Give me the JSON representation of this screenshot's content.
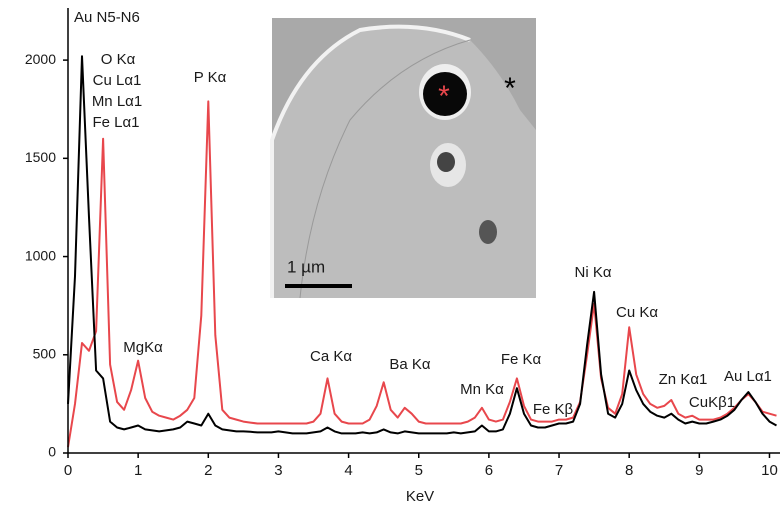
{
  "chart_data": {
    "type": "line",
    "x_label": "KeV",
    "x": [
      0,
      0.1,
      0.2,
      0.3,
      0.4,
      0.5,
      0.6,
      0.7,
      0.8,
      0.9,
      1,
      1.1,
      1.2,
      1.3,
      1.4,
      1.5,
      1.6,
      1.7,
      1.8,
      1.9,
      2,
      2.1,
      2.2,
      2.3,
      2.4,
      2.5,
      2.6,
      2.7,
      2.8,
      2.9,
      3,
      3.1,
      3.2,
      3.3,
      3.4,
      3.5,
      3.6,
      3.7,
      3.8,
      3.9,
      4,
      4.1,
      4.2,
      4.3,
      4.4,
      4.5,
      4.6,
      4.7,
      4.8,
      4.9,
      5,
      5.1,
      5.2,
      5.3,
      5.4,
      5.5,
      5.6,
      5.7,
      5.8,
      5.9,
      6,
      6.1,
      6.2,
      6.3,
      6.4,
      6.5,
      6.6,
      6.7,
      6.8,
      6.9,
      7,
      7.1,
      7.2,
      7.3,
      7.4,
      7.5,
      7.6,
      7.7,
      7.8,
      7.9,
      8,
      8.1,
      8.2,
      8.3,
      8.4,
      8.5,
      8.6,
      8.7,
      8.8,
      8.9,
      9,
      9.1,
      9.2,
      9.3,
      9.4,
      9.5,
      9.6,
      9.7,
      9.8,
      9.9,
      10,
      10.1
    ],
    "series": [
      {
        "color": "#e8474c",
        "values": [
          30,
          250,
          560,
          520,
          620,
          1600,
          450,
          260,
          220,
          320,
          470,
          280,
          210,
          190,
          180,
          170,
          190,
          220,
          280,
          700,
          1790,
          600,
          220,
          180,
          170,
          160,
          155,
          150,
          150,
          150,
          150,
          150,
          150,
          150,
          150,
          160,
          200,
          380,
          200,
          160,
          150,
          150,
          150,
          170,
          240,
          360,
          220,
          180,
          230,
          200,
          160,
          150,
          150,
          150,
          150,
          150,
          150,
          160,
          180,
          230,
          170,
          160,
          170,
          260,
          380,
          240,
          170,
          160,
          160,
          160,
          170,
          170,
          180,
          260,
          500,
          760,
          380,
          230,
          200,
          300,
          640,
          400,
          300,
          250,
          230,
          240,
          270,
          200,
          180,
          190,
          170,
          170,
          170,
          180,
          200,
          230,
          270,
          300,
          260,
          210,
          200,
          190
        ]
      },
      {
        "color": "#000000",
        "values": [
          250,
          900,
          2020,
          1200,
          420,
          380,
          160,
          130,
          120,
          130,
          140,
          120,
          115,
          110,
          115,
          120,
          130,
          160,
          150,
          140,
          200,
          140,
          120,
          115,
          110,
          110,
          108,
          105,
          105,
          105,
          110,
          105,
          100,
          100,
          100,
          105,
          110,
          130,
          110,
          100,
          100,
          100,
          105,
          100,
          105,
          120,
          105,
          100,
          110,
          105,
          100,
          100,
          100,
          100,
          100,
          105,
          100,
          105,
          110,
          140,
          110,
          110,
          120,
          200,
          330,
          200,
          140,
          130,
          130,
          140,
          150,
          150,
          160,
          250,
          550,
          820,
          400,
          200,
          180,
          250,
          420,
          320,
          250,
          210,
          190,
          180,
          200,
          170,
          150,
          160,
          150,
          150,
          160,
          170,
          190,
          220,
          270,
          310,
          260,
          200,
          160,
          140
        ]
      }
    ],
    "xlim": [
      0,
      10.15
    ],
    "xticks": [
      0,
      1,
      2,
      3,
      4,
      5,
      6,
      7,
      8,
      9,
      10
    ],
    "ylim": [
      0,
      2250
    ],
    "yticks": [
      0,
      500,
      1000,
      1500,
      2000
    ],
    "annotations": [
      "Au N5-N6",
      "O Kα",
      "Cu Lα1",
      "Mn Lα1",
      "Fe Lα1",
      "MgKα",
      "P Kα",
      "Ca Kα",
      "Ba Kα",
      "Mn Kα",
      "Fe Kα",
      "Fe Kβ",
      "Ni Kα",
      "Cu Kα",
      "Zn Kα1",
      "CuKβ1",
      "Au Lα1"
    ],
    "inset": {
      "scale_label": "1 µm",
      "markers": [
        "*",
        "*"
      ]
    }
  }
}
